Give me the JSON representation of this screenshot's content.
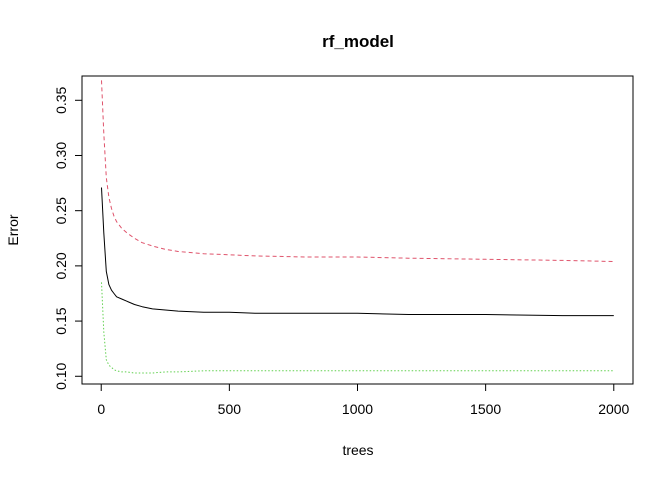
{
  "chart_data": {
    "type": "line",
    "title": "rf_model",
    "xlabel": "trees",
    "ylabel": "Error",
    "xlim": [
      -75,
      2075
    ],
    "ylim": [
      0.093,
      0.372
    ],
    "x_ticks": [
      0,
      500,
      1000,
      1500,
      2000
    ],
    "x_tick_labels": [
      "0",
      "500",
      "1000",
      "1500",
      "2000"
    ],
    "y_ticks": [
      0.1,
      0.15,
      0.2,
      0.25,
      0.3,
      0.35
    ],
    "y_tick_labels": [
      "0.10",
      "0.15",
      "0.20",
      "0.25",
      "0.30",
      "0.35"
    ],
    "grid": false,
    "series": [
      {
        "color": "#000000",
        "dash": "solid",
        "x": [
          1,
          10,
          20,
          30,
          40,
          50,
          60,
          80,
          100,
          130,
          160,
          200,
          250,
          300,
          400,
          500,
          600,
          800,
          1000,
          1200,
          1500,
          1800,
          2000
        ],
        "y": [
          0.271,
          0.23,
          0.195,
          0.183,
          0.178,
          0.175,
          0.172,
          0.17,
          0.168,
          0.165,
          0.163,
          0.161,
          0.16,
          0.159,
          0.158,
          0.158,
          0.157,
          0.157,
          0.157,
          0.156,
          0.156,
          0.155,
          0.155
        ]
      },
      {
        "color": "#DF536B",
        "dash": "dashed",
        "x": [
          1,
          10,
          20,
          30,
          40,
          50,
          60,
          80,
          100,
          130,
          160,
          200,
          250,
          300,
          400,
          500,
          600,
          800,
          1000,
          1200,
          1500,
          1800,
          2000
        ],
        "y": [
          0.368,
          0.32,
          0.28,
          0.262,
          0.252,
          0.245,
          0.24,
          0.234,
          0.23,
          0.225,
          0.221,
          0.218,
          0.215,
          0.213,
          0.211,
          0.21,
          0.209,
          0.208,
          0.208,
          0.207,
          0.206,
          0.205,
          0.204
        ]
      },
      {
        "color": "#61D04F",
        "dash": "dotted",
        "x": [
          1,
          10,
          20,
          30,
          40,
          50,
          60,
          80,
          100,
          130,
          160,
          200,
          250,
          300,
          400,
          500,
          600,
          800,
          1000,
          1200,
          1500,
          1800,
          2000
        ],
        "y": [
          0.185,
          0.14,
          0.115,
          0.11,
          0.108,
          0.106,
          0.105,
          0.104,
          0.104,
          0.103,
          0.103,
          0.103,
          0.104,
          0.104,
          0.105,
          0.105,
          0.105,
          0.105,
          0.105,
          0.105,
          0.105,
          0.105,
          0.105
        ]
      }
    ]
  }
}
